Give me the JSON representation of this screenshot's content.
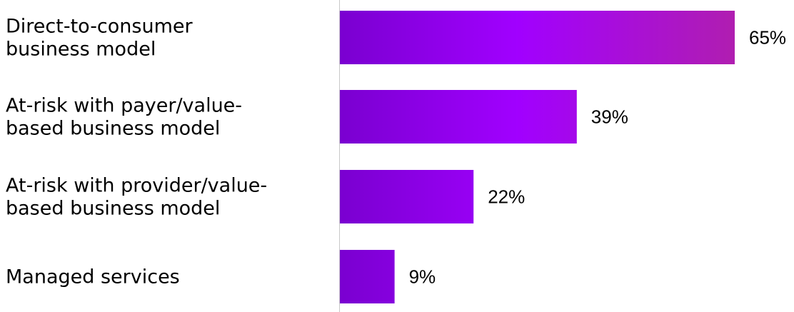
{
  "chart_data": {
    "type": "bar",
    "orientation": "horizontal",
    "categories": [
      [
        "Direct-to-consumer",
        "business model"
      ],
      [
        "At-risk with payer/value-",
        "based business model"
      ],
      [
        "At-risk with provider/value-",
        "based business model"
      ],
      [
        "Managed services"
      ]
    ],
    "values": [
      65,
      39,
      22,
      9
    ],
    "value_labels": [
      "65%",
      "39%",
      "22%",
      "9%"
    ],
    "unit": "%",
    "xlim": [
      0,
      100
    ],
    "title": "",
    "xlabel": "",
    "ylabel": "",
    "grid": false,
    "legend": "none",
    "colors": {
      "bar_gradient_start": "#7a00d0",
      "bar_gradient_mid": "#a100ff",
      "bar_gradient_end": "#b01eb0",
      "axis_line": "#c8c8c8",
      "text": "#000000"
    }
  }
}
